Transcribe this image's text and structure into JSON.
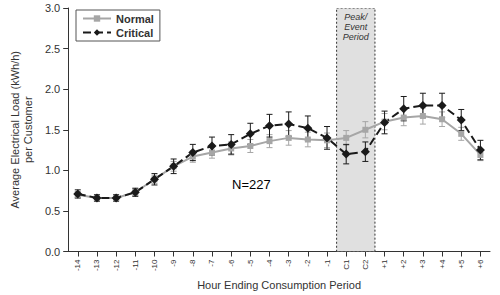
{
  "chart_data": {
    "type": "line",
    "x_label": "Hour Ending Consumption Period",
    "y_label": "Average Electrical Load (kWh/h) per Customer",
    "categories": [
      "-14",
      "-13",
      "-12",
      "-11",
      "-10",
      "-9",
      "-8",
      "-7",
      "-6",
      "-5",
      "-4",
      "-3",
      "-2",
      "-1",
      "C1",
      "C2",
      "+1",
      "+2",
      "+3",
      "+4",
      "+5",
      "+6"
    ],
    "series": [
      {
        "name": "Normal",
        "color": "#a6a6a6",
        "marker": "square",
        "line_style": "solid",
        "values": [
          0.7,
          0.66,
          0.66,
          0.73,
          0.89,
          1.05,
          1.17,
          1.22,
          1.27,
          1.3,
          1.36,
          1.4,
          1.38,
          1.37,
          1.4,
          1.5,
          1.6,
          1.65,
          1.67,
          1.63,
          1.45,
          1.19
        ],
        "errors": [
          0.04,
          0.03,
          0.03,
          0.04,
          0.05,
          0.06,
          0.07,
          0.07,
          0.08,
          0.08,
          0.08,
          0.09,
          0.09,
          0.09,
          0.09,
          0.1,
          0.1,
          0.1,
          0.1,
          0.09,
          0.08,
          0.07
        ]
      },
      {
        "name": "Critical",
        "color": "#1a1a1a",
        "marker": "diamond",
        "line_style": "dashed",
        "values": [
          0.71,
          0.66,
          0.66,
          0.73,
          0.89,
          1.05,
          1.22,
          1.3,
          1.32,
          1.45,
          1.55,
          1.57,
          1.52,
          1.4,
          1.2,
          1.23,
          1.59,
          1.76,
          1.8,
          1.8,
          1.62,
          1.25
        ],
        "errors": [
          0.05,
          0.04,
          0.04,
          0.05,
          0.07,
          0.09,
          0.1,
          0.11,
          0.12,
          0.13,
          0.14,
          0.15,
          0.15,
          0.14,
          0.12,
          0.12,
          0.14,
          0.15,
          0.15,
          0.15,
          0.13,
          0.12
        ]
      }
    ],
    "ylim": [
      0,
      3
    ],
    "yticks": [
      {
        "value": 0,
        "label": "0.0"
      },
      0.5,
      {
        "value": 1,
        "label": "1.0"
      },
      1.5,
      {
        "value": 2,
        "label": "2.0"
      },
      2.5,
      {
        "value": 3,
        "label": "3.0"
      }
    ],
    "shaded": {
      "from": "C1",
      "to": "C2",
      "label": "Peak/ Event Period"
    },
    "annotations": [
      {
        "text": "N=227"
      }
    ],
    "legend": "top-left",
    "grid": false
  }
}
